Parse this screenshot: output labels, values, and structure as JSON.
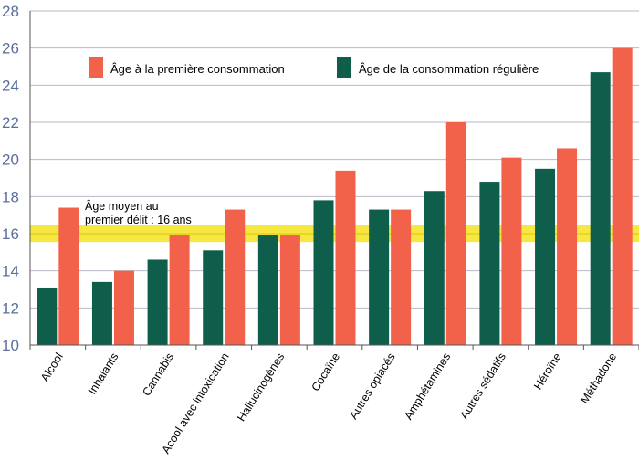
{
  "chart_data": {
    "type": "bar",
    "title": "",
    "xlabel": "",
    "ylabel": "",
    "ylim": [
      10,
      28
    ],
    "yticks": [
      10,
      12,
      14,
      16,
      18,
      20,
      22,
      24,
      26,
      28
    ],
    "grid": true,
    "legend_position": "top",
    "categories": [
      "Alcool",
      "Inhalants",
      "Cannabis",
      "Acool avec intoxication",
      "Hallucinogènes",
      "Cocaïne",
      "Autres opiacés",
      "Amphétamines",
      "Autres sédatifs",
      "Héroïne",
      "Méthadone"
    ],
    "series": [
      {
        "name": "Âge de la consommation régulière",
        "color": "#0f5e4b",
        "values": [
          13.1,
          13.4,
          14.6,
          15.1,
          15.9,
          17.8,
          17.3,
          18.3,
          18.8,
          19.5,
          24.7
        ]
      },
      {
        "name": "Âge à la première consommation",
        "color": "#f2614a",
        "values": [
          17.4,
          14.0,
          15.9,
          17.3,
          15.9,
          19.4,
          17.3,
          22.0,
          20.1,
          20.6,
          26.0
        ]
      }
    ],
    "reference_line": {
      "value": 16,
      "color": "#f5e52c",
      "label_line1": "Âge moyen au",
      "label_line2": "premier délit : 16 ans"
    }
  }
}
